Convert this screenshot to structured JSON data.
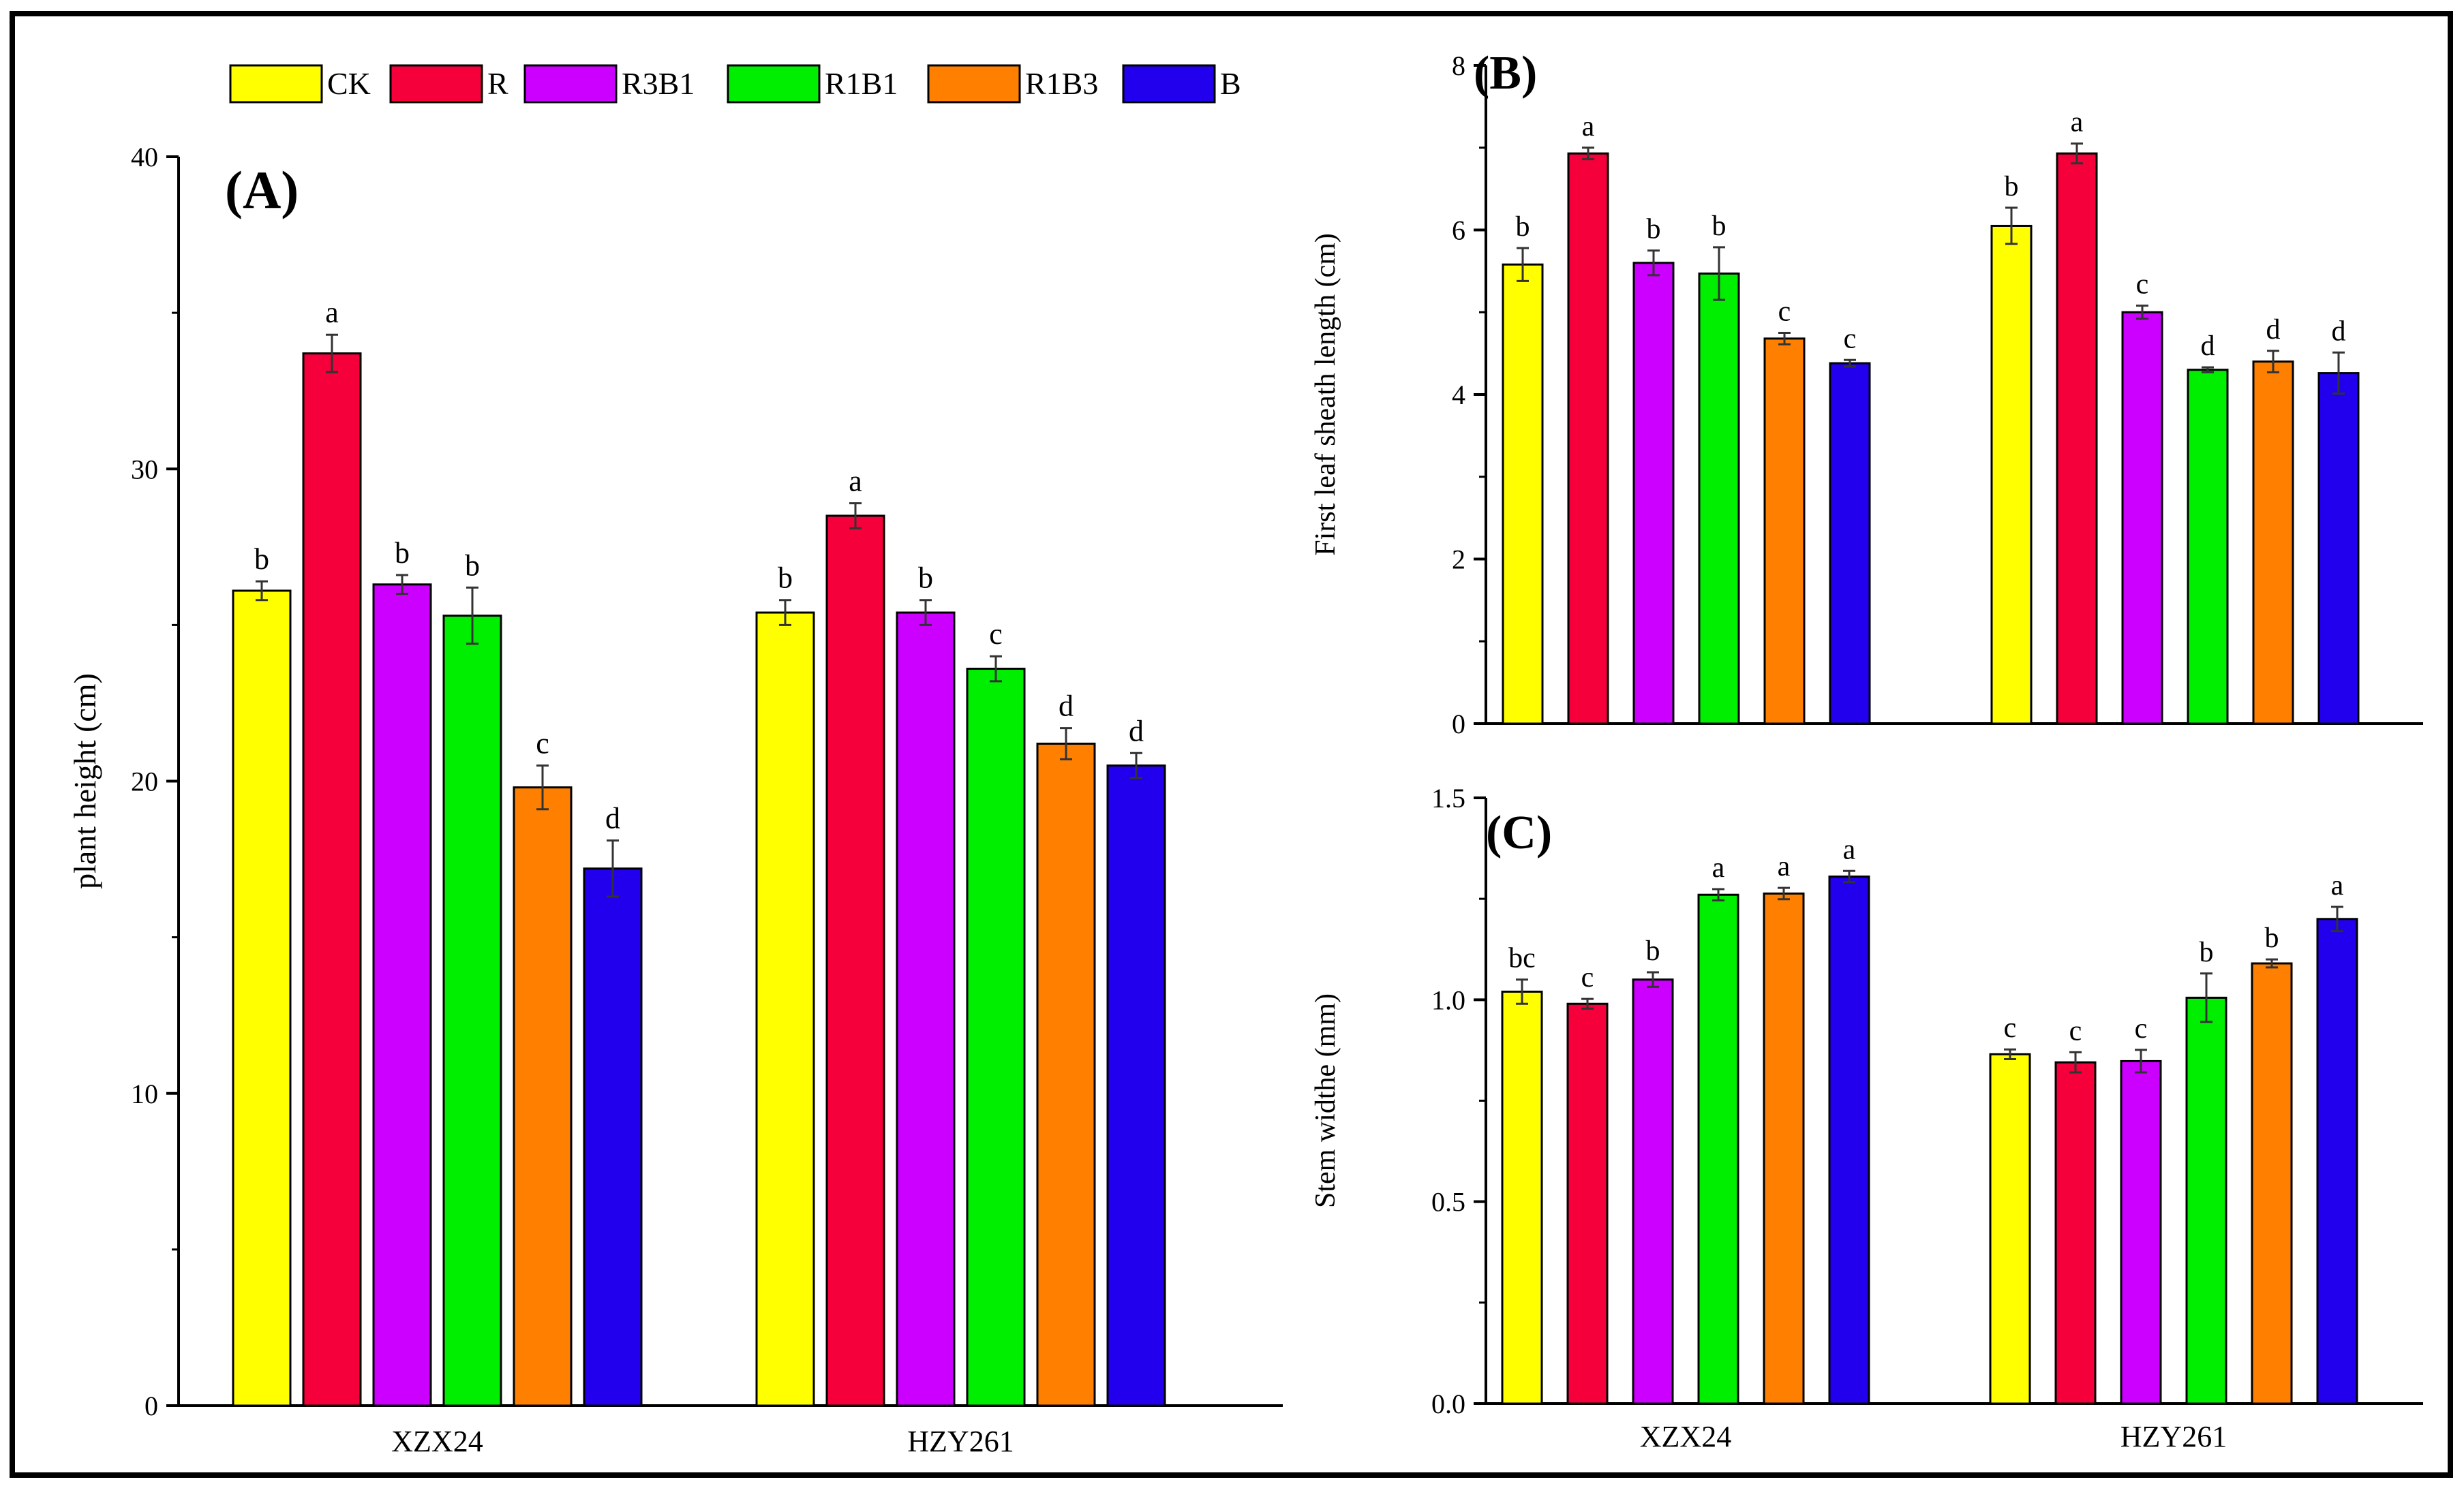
{
  "figure": {
    "legend": [
      "CK",
      "R",
      "R3B1",
      "R1B1",
      "R1B3",
      "B"
    ]
  },
  "chart_data": [
    {
      "type": "bar",
      "panel": "(A)",
      "categories": [
        "XZX24",
        "HZY261"
      ],
      "xlabel": "",
      "ylabel": "plant height (cm)",
      "ylim": [
        0,
        40
      ],
      "yticks": [
        0,
        10,
        20,
        30,
        40
      ],
      "ytick_labels": [
        "0",
        "10",
        "20",
        "30",
        "40"
      ],
      "series": [
        {
          "name": "CK",
          "color": "#FFFF00",
          "values": [
            26.1,
            25.4
          ],
          "errors": [
            0.3,
            0.4
          ],
          "letters": [
            "b",
            "b"
          ]
        },
        {
          "name": "R",
          "color": "#F5003A",
          "values": [
            33.7,
            28.5
          ],
          "errors": [
            0.6,
            0.4
          ],
          "letters": [
            "a",
            "a"
          ]
        },
        {
          "name": "R3B1",
          "color": "#CC00FF",
          "values": [
            26.3,
            25.4
          ],
          "errors": [
            0.3,
            0.4
          ],
          "letters": [
            "b",
            "b"
          ]
        },
        {
          "name": "R1B1",
          "color": "#00EE00",
          "values": [
            25.3,
            23.6
          ],
          "errors": [
            0.9,
            0.4
          ],
          "letters": [
            "b",
            "c"
          ]
        },
        {
          "name": "R1B3",
          "color": "#FF8000",
          "values": [
            19.8,
            21.2
          ],
          "errors": [
            0.7,
            0.5
          ],
          "letters": [
            "c",
            "d"
          ]
        },
        {
          "name": "B",
          "color": "#2200EE",
          "values": [
            17.2,
            20.5
          ],
          "errors": [
            0.9,
            0.4
          ],
          "letters": [
            "d",
            "d"
          ]
        }
      ]
    },
    {
      "type": "bar",
      "panel": "(B)",
      "categories": [
        "XZX24",
        "HZY261"
      ],
      "xlabel": "",
      "ylabel": "First leaf sheath length (cm)",
      "ylim": [
        0,
        8
      ],
      "yticks": [
        0,
        2,
        4,
        6,
        8
      ],
      "ytick_labels": [
        "0",
        "2",
        "4",
        "6",
        "8"
      ],
      "show_category_labels": false,
      "series": [
        {
          "name": "CK",
          "color": "#FFFF00",
          "values": [
            5.58,
            6.05
          ],
          "errors": [
            0.2,
            0.22
          ],
          "letters": [
            "b",
            "b"
          ]
        },
        {
          "name": "R",
          "color": "#F5003A",
          "values": [
            6.93,
            6.93
          ],
          "errors": [
            0.07,
            0.12
          ],
          "letters": [
            "a",
            "a"
          ]
        },
        {
          "name": "R3B1",
          "color": "#CC00FF",
          "values": [
            5.6,
            5.0
          ],
          "errors": [
            0.15,
            0.08
          ],
          "letters": [
            "b",
            "c"
          ]
        },
        {
          "name": "R1B1",
          "color": "#00EE00",
          "values": [
            5.47,
            4.3
          ],
          "errors": [
            0.32,
            0.03
          ],
          "letters": [
            "b",
            "d"
          ]
        },
        {
          "name": "R1B3",
          "color": "#FF8000",
          "values": [
            4.68,
            4.4
          ],
          "errors": [
            0.07,
            0.13
          ],
          "letters": [
            "c",
            "d"
          ]
        },
        {
          "name": "B",
          "color": "#2200EE",
          "values": [
            4.38,
            4.26
          ],
          "errors": [
            0.04,
            0.25
          ],
          "letters": [
            "c",
            "d"
          ]
        }
      ]
    },
    {
      "type": "bar",
      "panel": "(C)",
      "categories": [
        "XZX24",
        "HZY261"
      ],
      "xlabel": "",
      "ylabel": "Stem widthe  (mm)",
      "ylim": [
        0,
        1.5
      ],
      "yticks": [
        0,
        0.5,
        1.0,
        1.5
      ],
      "ytick_labels": [
        "0.0",
        "0.5",
        "1.0",
        "1.5"
      ],
      "series": [
        {
          "name": "CK",
          "color": "#FFFF00",
          "values": [
            1.02,
            0.865
          ],
          "errors": [
            0.03,
            0.012
          ],
          "letters": [
            "bc",
            "c"
          ]
        },
        {
          "name": "R",
          "color": "#F5003A",
          "values": [
            0.99,
            0.845
          ],
          "errors": [
            0.012,
            0.025
          ],
          "letters": [
            "c",
            "c"
          ]
        },
        {
          "name": "R3B1",
          "color": "#CC00FF",
          "values": [
            1.05,
            0.848
          ],
          "errors": [
            0.018,
            0.028
          ],
          "letters": [
            "b",
            "c"
          ]
        },
        {
          "name": "R1B1",
          "color": "#00EE00",
          "values": [
            1.26,
            1.005
          ],
          "errors": [
            0.014,
            0.06
          ],
          "letters": [
            "a",
            "b"
          ]
        },
        {
          "name": "R1B3",
          "color": "#FF8000",
          "values": [
            1.263,
            1.09
          ],
          "errors": [
            0.014,
            0.01
          ],
          "letters": [
            "a",
            "b"
          ]
        },
        {
          "name": "B",
          "color": "#2200EE",
          "values": [
            1.305,
            1.2
          ],
          "errors": [
            0.014,
            0.03
          ],
          "letters": [
            "a",
            "a"
          ]
        }
      ]
    }
  ]
}
